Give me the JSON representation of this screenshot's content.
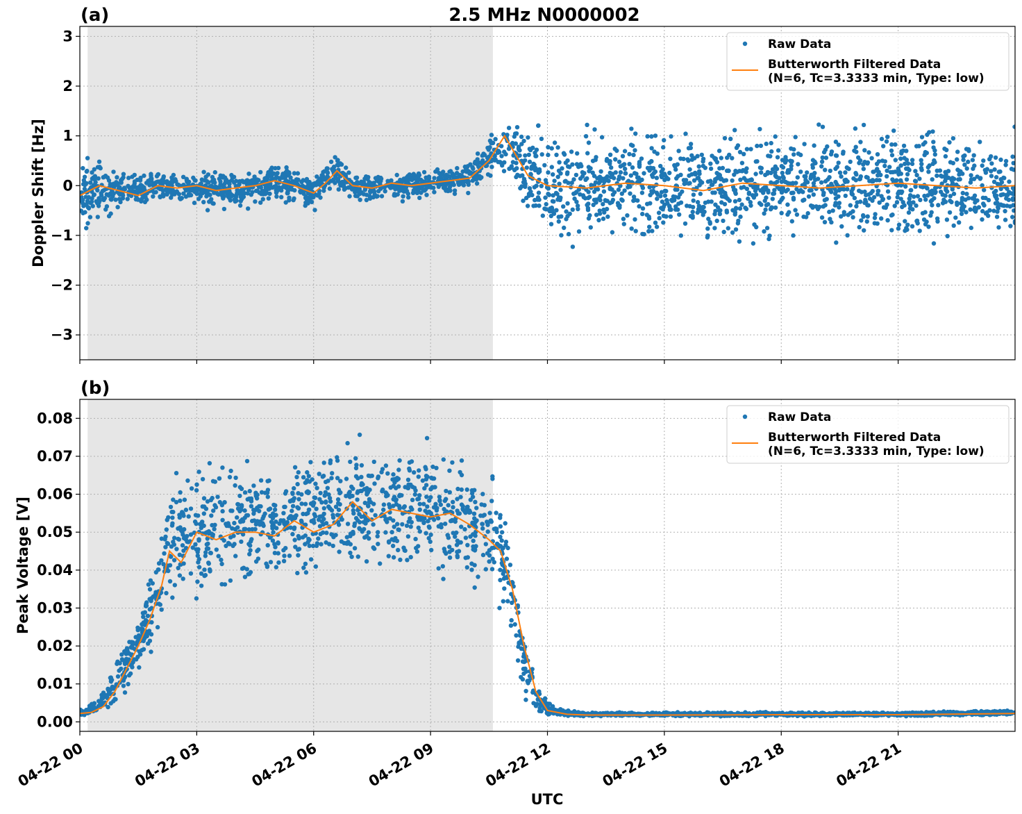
{
  "figure": {
    "title": "2.5 MHz N0000002",
    "xlabel": "UTC"
  },
  "colors": {
    "raw": "#1f77b4",
    "filtered": "#ff7f0e",
    "shade": "#e6e6e6",
    "grid": "#b0b0b0"
  },
  "chart_data": [
    {
      "type": "scatter",
      "panel_label": "(a)",
      "ylabel": "Doppler Shift [Hz]",
      "xlim": [
        0,
        24
      ],
      "ylim": [
        -3.5,
        3.2
      ],
      "yticks": [
        3,
        2,
        1,
        0,
        -1,
        -2,
        -3
      ],
      "ytick_labels": [
        "3",
        "2",
        "1",
        "0",
        "−1",
        "−2",
        "−3"
      ],
      "xticks": [
        0,
        3,
        6,
        9,
        12,
        15,
        18,
        21
      ],
      "xtick_labels": [
        "",
        "",
        "",
        "",
        "",
        "",
        "",
        ""
      ],
      "shaded_x": [
        0.2,
        10.6
      ],
      "grid": true,
      "legend_position": "top-right",
      "series": [
        {
          "name": "Raw Data",
          "type": "scatter",
          "band": {
            "x": [
              0,
              0.5,
              1,
              2,
              3,
              4,
              5,
              6,
              6.5,
              7,
              8,
              9,
              10,
              10.5,
              11,
              11.5,
              12,
              13,
              15,
              18,
              21,
              24
            ],
            "center": [
              -0.2,
              -0.1,
              -0.1,
              0.0,
              -0.1,
              -0.1,
              0.1,
              -0.15,
              0.3,
              -0.05,
              0.0,
              0.05,
              0.15,
              0.6,
              0.8,
              0.3,
              0.0,
              0.0,
              0.0,
              0.0,
              0.0,
              0.0
            ],
            "spread": [
              0.9,
              0.6,
              0.4,
              0.3,
              0.35,
              0.4,
              0.35,
              0.35,
              0.35,
              0.3,
              0.3,
              0.25,
              0.3,
              0.4,
              0.5,
              0.9,
              1.1,
              1.1,
              1.1,
              1.1,
              1.1,
              1.1
            ]
          }
        },
        {
          "name": "Butterworth Filtered Data\n(N=6, Tc=3.3333 min, Type: low)",
          "type": "line",
          "x": [
            0,
            0.5,
            1,
            1.5,
            2,
            2.5,
            3,
            3.5,
            4,
            4.5,
            5,
            5.5,
            6,
            6.3,
            6.6,
            7,
            7.5,
            8,
            8.5,
            9,
            9.5,
            10,
            10.5,
            10.9,
            11.2,
            11.5,
            12,
            13,
            14,
            15,
            16,
            17,
            18,
            19,
            20,
            21,
            22,
            23,
            24
          ],
          "y": [
            -0.2,
            0.0,
            -0.1,
            -0.2,
            0.0,
            -0.05,
            0.0,
            -0.1,
            -0.05,
            0.0,
            0.1,
            0.0,
            -0.15,
            0.05,
            0.3,
            0.0,
            -0.05,
            0.05,
            0.0,
            0.05,
            0.1,
            0.15,
            0.5,
            1.0,
            0.6,
            0.2,
            0.0,
            -0.05,
            0.05,
            0.0,
            -0.1,
            0.05,
            0.0,
            -0.05,
            0.0,
            0.05,
            0.0,
            -0.05,
            0.0
          ]
        }
      ]
    },
    {
      "type": "scatter",
      "panel_label": "(b)",
      "ylabel": "Peak Voltage [V]",
      "xlim": [
        0,
        24
      ],
      "ylim": [
        -0.0025,
        0.085
      ],
      "yticks": [
        0.08,
        0.07,
        0.06,
        0.05,
        0.04,
        0.03,
        0.02,
        0.01,
        0.0
      ],
      "ytick_labels": [
        "0.08",
        "0.07",
        "0.06",
        "0.05",
        "0.04",
        "0.03",
        "0.02",
        "0.01",
        "0.00"
      ],
      "xticks": [
        0,
        3,
        6,
        9,
        12,
        15,
        18,
        21
      ],
      "xtick_labels": [
        "04-22 00",
        "04-22 03",
        "04-22 06",
        "04-22 09",
        "04-22 12",
        "04-22 15",
        "04-22 18",
        "04-22 21"
      ],
      "shaded_x": [
        0.2,
        10.6
      ],
      "grid": true,
      "legend_position": "top-right",
      "series": [
        {
          "name": "Raw Data",
          "type": "scatter",
          "band": {
            "x": [
              0,
              0.5,
              0.8,
              1,
              1.5,
              2,
              2.4,
              3,
              4,
              5,
              6,
              7,
              8,
              9,
              10,
              10.6,
              11,
              11.4,
              11.8,
              12.2,
              13,
              15,
              18,
              21,
              24
            ],
            "center": [
              0.0025,
              0.004,
              0.008,
              0.012,
              0.02,
              0.035,
              0.05,
              0.05,
              0.053,
              0.052,
              0.055,
              0.057,
              0.057,
              0.055,
              0.052,
              0.048,
              0.04,
              0.015,
              0.005,
              0.0025,
              0.002,
              0.002,
              0.002,
              0.002,
              0.0025
            ],
            "spread": [
              0.001,
              0.002,
              0.004,
              0.006,
              0.008,
              0.012,
              0.014,
              0.016,
              0.016,
              0.016,
              0.017,
              0.017,
              0.017,
              0.017,
              0.016,
              0.016,
              0.014,
              0.008,
              0.003,
              0.001,
              0.0005,
              0.0005,
              0.0005,
              0.0005,
              0.0006
            ]
          }
        },
        {
          "name": "Butterworth Filtered Data\n(N=6, Tc=3.3333 min, Type: low)",
          "type": "line",
          "x": [
            0,
            0.3,
            0.6,
            0.9,
            1.2,
            1.5,
            1.8,
            2.1,
            2.3,
            2.6,
            3,
            3.5,
            4,
            4.5,
            5,
            5.5,
            6,
            6.5,
            7,
            7.5,
            8,
            8.5,
            9,
            9.5,
            10,
            10.5,
            10.8,
            11.1,
            11.4,
            11.7,
            12,
            12.5,
            13,
            15,
            18,
            21,
            24
          ],
          "y": [
            0.0022,
            0.0025,
            0.004,
            0.008,
            0.014,
            0.02,
            0.027,
            0.036,
            0.045,
            0.042,
            0.05,
            0.048,
            0.05,
            0.05,
            0.049,
            0.053,
            0.05,
            0.052,
            0.058,
            0.053,
            0.056,
            0.055,
            0.054,
            0.055,
            0.052,
            0.048,
            0.045,
            0.035,
            0.02,
            0.008,
            0.003,
            0.002,
            0.0018,
            0.0018,
            0.0019,
            0.0019,
            0.0022
          ]
        }
      ]
    }
  ]
}
